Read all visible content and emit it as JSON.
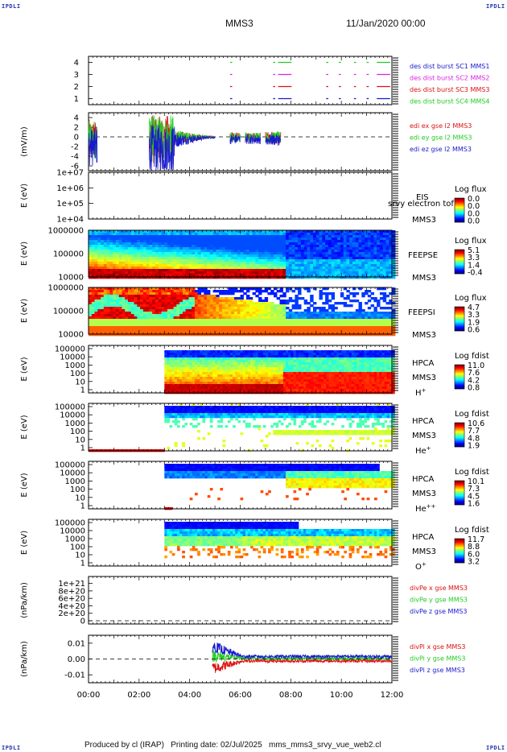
{
  "header": {
    "corner_label": "IPDLI",
    "spacecraft": "MMS3",
    "date_time": "11/Jan/2020 00:00"
  },
  "footer": {
    "text": "Produced by cl (IRAP)   Printing date: 02/Jul/2025   mms_mms3_srvy_vue_web2.cl"
  },
  "x_axis": {
    "ticks": [
      "00:00",
      "02:00",
      "04:00",
      "06:00",
      "08:00",
      "10:00",
      "12:00"
    ],
    "range_hours": [
      0,
      12
    ]
  },
  "colors": {
    "blue": "#1a1acc",
    "magenta": "#dd22dd",
    "red": "#dd1111",
    "green": "#22cc22"
  },
  "chart_data": [
    {
      "type": "scatter",
      "panel": "des_burst",
      "yticks": [
        "4",
        "3",
        "2",
        "1"
      ],
      "ylim": [
        0.5,
        4.5
      ],
      "series": [
        {
          "name": "des dist burst SC1 MMS1",
          "color": "#22cc22",
          "y": 4,
          "segments": [
            [
              5.6,
              5.65
            ],
            [
              7.3,
              7.35
            ],
            [
              7.5,
              8.0
            ],
            [
              9.4,
              9.45
            ],
            [
              9.9,
              9.95
            ],
            [
              10.5,
              10.55
            ],
            [
              11.0,
              11.05
            ],
            [
              11.4,
              11.9
            ]
          ]
        },
        {
          "name": "des dist burst SC2 MMS2",
          "color": "#dd22dd",
          "y": 3,
          "segments": [
            [
              5.6,
              5.65
            ],
            [
              7.3,
              7.35
            ],
            [
              7.5,
              8.0
            ],
            [
              9.4,
              9.45
            ],
            [
              9.9,
              9.95
            ],
            [
              10.5,
              10.55
            ],
            [
              11.0,
              11.05
            ],
            [
              11.4,
              11.9
            ]
          ]
        },
        {
          "name": "des dist burst SC3 MMS3",
          "color": "#dd1111",
          "y": 2,
          "segments": [
            [
              5.6,
              5.65
            ],
            [
              7.3,
              7.35
            ],
            [
              7.5,
              8.0
            ],
            [
              9.4,
              9.45
            ],
            [
              9.9,
              9.95
            ],
            [
              10.5,
              10.55
            ],
            [
              11.0,
              11.05
            ],
            [
              11.4,
              11.9
            ]
          ]
        },
        {
          "name": "des dist burst SC4 MMS4",
          "color": "#1a1acc",
          "y": 1,
          "segments": [
            [
              5.6,
              5.65
            ],
            [
              7.3,
              7.35
            ],
            [
              7.5,
              8.0
            ],
            [
              9.4,
              9.45
            ],
            [
              9.9,
              9.95
            ],
            [
              10.5,
              10.55
            ],
            [
              11.0,
              11.05
            ],
            [
              11.4,
              11.9
            ]
          ]
        }
      ]
    },
    {
      "type": "line",
      "panel": "edi_e",
      "ylabel": "(mV/m)",
      "yticks": [
        "4",
        "2",
        "0",
        "-2",
        "-4",
        "-6"
      ],
      "ylim": [
        -7,
        5
      ],
      "zero_line": true,
      "series": [
        {
          "name": "edi ex gse l2 MMS3",
          "color": "#dd1111"
        },
        {
          "name": "edi ey gse l2 MMS3",
          "color": "#22cc22"
        },
        {
          "name": "edi ez gse l2 MMS3",
          "color": "#1a1acc"
        }
      ],
      "active_intervals_hours": [
        [
          0.0,
          0.35
        ],
        [
          2.4,
          3.4
        ],
        [
          3.4,
          5.0
        ],
        [
          5.6,
          6.0
        ],
        [
          6.2,
          6.8
        ],
        [
          7.0,
          7.6
        ]
      ],
      "amplitude_mV_m": [
        4,
        5,
        1.5,
        1,
        1,
        1.2
      ]
    },
    {
      "type": "heatmap",
      "panel": "eis",
      "ylabel": "E (eV)",
      "yticks": [
        "1e+07",
        "1e+06",
        "1e+05",
        "1e+04"
      ],
      "yscale": "log",
      "instrument": "EIS",
      "overlay_text": "srvy electron tof",
      "spacecraft": "MMS3",
      "colorbar": {
        "title": "Log flux",
        "labels": [
          "0.0",
          "0.0",
          "0.0",
          "0.0"
        ]
      },
      "data": "empty"
    },
    {
      "type": "heatmap",
      "panel": "feepse",
      "ylabel": "E (eV)",
      "yticks": [
        "1000000",
        "100000",
        "10000"
      ],
      "yscale": "log",
      "instrument": "FEEPSE",
      "spacecraft": "MMS3",
      "colorbar": {
        "title": "Log flux",
        "labels": [
          "5.1",
          "3.3",
          "1.4",
          "-0.4"
        ]
      }
    },
    {
      "type": "heatmap",
      "panel": "feepsi",
      "ylabel": "E (eV)",
      "yticks": [
        "1000000",
        "100000",
        "10000"
      ],
      "yscale": "log",
      "instrument": "FEEPSI",
      "spacecraft": "MMS3",
      "colorbar": {
        "title": "Log flux",
        "labels": [
          "4.7",
          "3.3",
          "1.9",
          "0.6"
        ]
      }
    },
    {
      "type": "heatmap",
      "panel": "hpca_h",
      "ylabel": "E (eV)",
      "yticks": [
        "100000",
        "10000",
        "1000",
        "100",
        "10",
        "1"
      ],
      "yscale": "log",
      "instrument": "HPCA",
      "spacecraft": "MMS3",
      "species": "H",
      "species_sup": "+",
      "colorbar": {
        "title": "Log fdist",
        "labels": [
          "11.0",
          "7.6",
          "4.2",
          "0.8"
        ]
      }
    },
    {
      "type": "heatmap",
      "panel": "hpca_he",
      "ylabel": "E (eV)",
      "yticks": [
        "100000",
        "10000",
        "1000",
        "100",
        "10",
        "1"
      ],
      "yscale": "log",
      "instrument": "HPCA",
      "spacecraft": "MMS3",
      "species": "He",
      "species_sup": "+",
      "colorbar": {
        "title": "Log fdist",
        "labels": [
          "10.6",
          "7.7",
          "4.8",
          "1.9"
        ]
      }
    },
    {
      "type": "heatmap",
      "panel": "hpca_he2",
      "ylabel": "E (eV)",
      "yticks": [
        "100000",
        "10000",
        "1000",
        "100",
        "10",
        "1"
      ],
      "yscale": "log",
      "instrument": "HPCA",
      "spacecraft": "MMS3",
      "species": "He",
      "species_sup": "++",
      "colorbar": {
        "title": "Log fdist",
        "labels": [
          "10.1",
          "7.3",
          "4.5",
          "1.6"
        ]
      }
    },
    {
      "type": "heatmap",
      "panel": "hpca_o",
      "ylabel": "E (eV)",
      "yticks": [
        "100000",
        "10000",
        "1000",
        "100",
        "10",
        "1"
      ],
      "yscale": "log",
      "instrument": "HPCA",
      "spacecraft": "MMS3",
      "species": "O",
      "species_sup": "+",
      "colorbar": {
        "title": "Log fdist",
        "labels": [
          "11.7",
          "8.8",
          "6.0",
          "3.2"
        ]
      }
    },
    {
      "type": "line",
      "panel": "divpe",
      "ylabel": "(nPa/km)",
      "yticks": [
        "1e+21",
        "8e+20",
        "6e+20",
        "4e+20",
        "2e+20",
        "0"
      ],
      "ylim": [
        0,
        1.1e+21
      ],
      "zero_line": true,
      "series": [
        {
          "name": "divPe x gse MMS3",
          "color": "#dd1111"
        },
        {
          "name": "divPe y gse MMS3",
          "color": "#22cc22"
        },
        {
          "name": "divPe z gse MMS3",
          "color": "#1a1acc"
        }
      ],
      "data": "empty"
    },
    {
      "type": "line",
      "panel": "divpi",
      "ylabel": "(nPa/km)",
      "yticks": [
        "0.01",
        "0.00",
        "-0.01"
      ],
      "ylim": [
        -0.015,
        0.015
      ],
      "zero_line": true,
      "series": [
        {
          "name": "divPi x gse MMS3",
          "color": "#dd1111",
          "start_hour": 4.9,
          "mean": -0.003
        },
        {
          "name": "divPi y gse MMS3",
          "color": "#22cc22",
          "start_hour": 4.9,
          "mean": 0.001
        },
        {
          "name": "divPi z gse MMS3",
          "color": "#1a1acc",
          "start_hour": 4.9,
          "mean": 0.004
        }
      ]
    }
  ]
}
